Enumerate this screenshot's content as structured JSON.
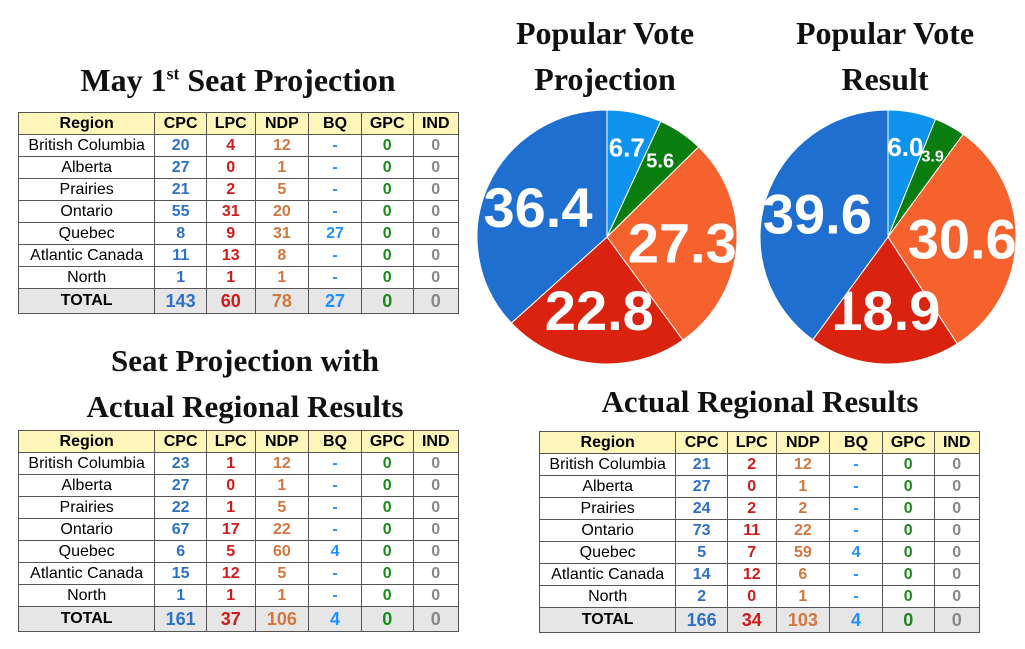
{
  "titles": {
    "may1_line1": "May 1",
    "may1_sup": "st",
    "may1_line2": " Seat Projection",
    "proj_actual_line1": "Seat Projection with",
    "proj_actual_line2": "Actual Regional Results",
    "actual": "Actual Regional Results",
    "pv_proj_line1": "Popular Vote",
    "pv_proj_line2": "Projection",
    "pv_res_line1": "Popular Vote",
    "pv_res_line2": "Result"
  },
  "colors": {
    "cpc": "#1f6fd1",
    "lpc": "#d9230f",
    "ndp": "#f5622d",
    "bq": "#0d93ee",
    "gpc": "#0a7d10",
    "ind": "#888888"
  },
  "chart_data": [
    {
      "type": "table",
      "title": "May 1st Seat Projection",
      "columns": [
        "Region",
        "CPC",
        "LPC",
        "NDP",
        "BQ",
        "GPC",
        "IND"
      ],
      "rows": [
        [
          "British Columbia",
          "20",
          "4",
          "12",
          "-",
          "0",
          "0"
        ],
        [
          "Alberta",
          "27",
          "0",
          "1",
          "-",
          "0",
          "0"
        ],
        [
          "Prairies",
          "21",
          "2",
          "5",
          "-",
          "0",
          "0"
        ],
        [
          "Ontario",
          "55",
          "31",
          "20",
          "-",
          "0",
          "0"
        ],
        [
          "Quebec",
          "8",
          "9",
          "31",
          "27",
          "0",
          "0"
        ],
        [
          "Atlantic Canada",
          "11",
          "13",
          "8",
          "-",
          "0",
          "0"
        ],
        [
          "North",
          "1",
          "1",
          "1",
          "-",
          "0",
          "0"
        ]
      ],
      "total": [
        "TOTAL",
        "143",
        "60",
        "78",
        "27",
        "0",
        "0"
      ]
    },
    {
      "type": "table",
      "title": "Seat Projection with Actual Regional Results",
      "columns": [
        "Region",
        "CPC",
        "LPC",
        "NDP",
        "BQ",
        "GPC",
        "IND"
      ],
      "rows": [
        [
          "British Columbia",
          "23",
          "1",
          "12",
          "-",
          "0",
          "0"
        ],
        [
          "Alberta",
          "27",
          "0",
          "1",
          "-",
          "0",
          "0"
        ],
        [
          "Prairies",
          "22",
          "1",
          "5",
          "-",
          "0",
          "0"
        ],
        [
          "Ontario",
          "67",
          "17",
          "22",
          "-",
          "0",
          "0"
        ],
        [
          "Quebec",
          "6",
          "5",
          "60",
          "4",
          "0",
          "0"
        ],
        [
          "Atlantic Canada",
          "15",
          "12",
          "5",
          "-",
          "0",
          "0"
        ],
        [
          "North",
          "1",
          "1",
          "1",
          "-",
          "0",
          "0"
        ]
      ],
      "total": [
        "TOTAL",
        "161",
        "37",
        "106",
        "4",
        "0",
        "0"
      ]
    },
    {
      "type": "table",
      "title": "Actual Regional Results",
      "columns": [
        "Region",
        "CPC",
        "LPC",
        "NDP",
        "BQ",
        "GPC",
        "IND"
      ],
      "rows": [
        [
          "British Columbia",
          "21",
          "2",
          "12",
          "-",
          "0",
          "0"
        ],
        [
          "Alberta",
          "27",
          "0",
          "1",
          "-",
          "0",
          "0"
        ],
        [
          "Prairies",
          "24",
          "2",
          "2",
          "-",
          "0",
          "0"
        ],
        [
          "Ontario",
          "73",
          "11",
          "22",
          "-",
          "0",
          "0"
        ],
        [
          "Quebec",
          "5",
          "7",
          "59",
          "4",
          "0",
          "0"
        ],
        [
          "Atlantic Canada",
          "14",
          "12",
          "6",
          "-",
          "0",
          "0"
        ],
        [
          "North",
          "2",
          "0",
          "1",
          "-",
          "0",
          "0"
        ]
      ],
      "total": [
        "TOTAL",
        "166",
        "34",
        "103",
        "4",
        "0",
        "0"
      ]
    },
    {
      "type": "pie",
      "title": "Popular Vote Projection",
      "slices": [
        {
          "party": "BQ",
          "value": 6.7,
          "label": "6.7"
        },
        {
          "party": "GPC",
          "value": 5.6,
          "label": "5.6"
        },
        {
          "party": "NDP",
          "value": 27.3,
          "label": "27.3"
        },
        {
          "party": "LPC",
          "value": 22.8,
          "label": "22.8"
        },
        {
          "party": "CPC",
          "value": 36.4,
          "label": "36.4"
        }
      ]
    },
    {
      "type": "pie",
      "title": "Popular Vote Result",
      "slices": [
        {
          "party": "BQ",
          "value": 6.0,
          "label": "6.0"
        },
        {
          "party": "GPC",
          "value": 3.9,
          "label": "3.9"
        },
        {
          "party": "NDP",
          "value": 30.6,
          "label": "30.6"
        },
        {
          "party": "LPC",
          "value": 18.9,
          "label": "18.9"
        },
        {
          "party": "CPC",
          "value": 39.6,
          "label": "39.6"
        }
      ]
    }
  ]
}
